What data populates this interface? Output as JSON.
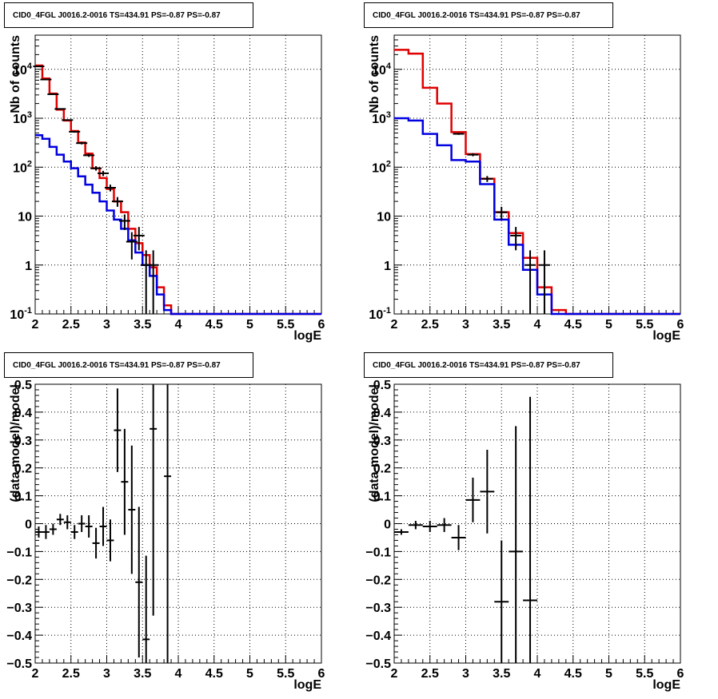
{
  "chart_data": [
    {
      "type": "step-histogram",
      "title": "CID0_4FGL J0016.2-0016 TS=434.91 PS=-0.87 PS=-0.87",
      "xlabel": "logE",
      "ylabel": "Nb of counts",
      "xlim": [
        2,
        6
      ],
      "ylim": [
        0.1,
        50000
      ],
      "log_y": true,
      "grid": true,
      "x_ticks": [
        "2",
        "2.5",
        "3",
        "3.5",
        "4",
        "4.5",
        "5",
        "5.5",
        "6"
      ],
      "y_ticks": [
        "10^-1",
        "1",
        "10",
        "10^2",
        "10^3",
        "10^4"
      ],
      "bin_edges": [
        2.0,
        2.1,
        2.2,
        2.3,
        2.4,
        2.5,
        2.6,
        2.7,
        2.8,
        2.9,
        3.0,
        3.1,
        3.2,
        3.3,
        3.4,
        3.5,
        3.6,
        3.7,
        3.8,
        3.9,
        4.0,
        4.1,
        4.2,
        4.3,
        4.4,
        4.5,
        4.6,
        4.7,
        4.8,
        4.9,
        5.0,
        5.1,
        5.2,
        5.3,
        5.4,
        5.5,
        5.6,
        5.7,
        5.8,
        5.9,
        6.0
      ],
      "series": [
        {
          "color": "#e00000",
          "values": [
            12000,
            6500,
            3200,
            1500,
            900,
            550,
            320,
            190,
            95,
            60,
            36,
            20,
            12,
            5.5,
            2.8,
            1.6,
            0.9,
            0.35,
            0.15,
            0.1,
            0.1,
            0.1,
            0.1,
            0.1,
            0.1,
            0.1,
            0.1,
            0.1,
            0.1,
            0.1,
            0.1,
            0.1,
            0.1,
            0.1,
            0.1,
            0.1,
            0.1,
            0.1,
            0.1,
            0.1
          ]
        },
        {
          "color": "#0000e0",
          "values": [
            450,
            380,
            260,
            180,
            130,
            95,
            65,
            44,
            30,
            20,
            13,
            8.5,
            5.5,
            3.2,
            1.8,
            1.0,
            0.6,
            0.25,
            0.12,
            0.1,
            0.1,
            0.1,
            0.1,
            0.1,
            0.1,
            0.1,
            0.1,
            0.1,
            0.1,
            0.1,
            0.1,
            0.1,
            0.1,
            0.1,
            0.1,
            0.1,
            0.1,
            0.1,
            0.1,
            0.1
          ]
        }
      ],
      "data_points": [
        {
          "x": 2.05,
          "y": 11500,
          "yerr": 110
        },
        {
          "x": 2.15,
          "y": 6200,
          "yerr": 80
        },
        {
          "x": 2.25,
          "y": 3100,
          "yerr": 56
        },
        {
          "x": 2.35,
          "y": 1550,
          "yerr": 40
        },
        {
          "x": 2.45,
          "y": 920,
          "yerr": 30
        },
        {
          "x": 2.55,
          "y": 530,
          "yerr": 23
        },
        {
          "x": 2.65,
          "y": 310,
          "yerr": 18
        },
        {
          "x": 2.75,
          "y": 175,
          "yerr": 13
        },
        {
          "x": 2.85,
          "y": 95,
          "yerr": 10
        },
        {
          "x": 2.95,
          "y": 75,
          "yerr": 9
        },
        {
          "x": 3.05,
          "y": 38,
          "yerr": 6
        },
        {
          "x": 3.15,
          "y": 20,
          "yerr": 4.5
        },
        {
          "x": 3.25,
          "y": 8,
          "yerr": 2.8
        },
        {
          "x": 3.35,
          "y": 3,
          "yerr": 1.7
        },
        {
          "x": 3.45,
          "y": 4,
          "yerr": 2
        },
        {
          "x": 3.55,
          "y": 1,
          "yerr": 1
        },
        {
          "x": 3.65,
          "y": 1,
          "yerr": 1
        }
      ]
    },
    {
      "type": "step-histogram",
      "title": "CID0_4FGL J0016.2-0016 TS=434.91 PS=-0.87 PS=-0.87",
      "xlabel": "logE",
      "ylabel": "Nb of counts",
      "xlim": [
        2,
        6
      ],
      "ylim": [
        0.1,
        50000
      ],
      "log_y": true,
      "grid": true,
      "x_ticks": [
        "2",
        "2.5",
        "3",
        "3.5",
        "4",
        "4.5",
        "5",
        "5.5",
        "6"
      ],
      "y_ticks": [
        "10^-1",
        "1",
        "10",
        "10^2",
        "10^3",
        "10^4"
      ],
      "bin_edges": [
        2.0,
        2.2,
        2.4,
        2.6,
        2.8,
        3.0,
        3.2,
        3.4,
        3.6,
        3.8,
        4.0,
        4.2,
        4.4,
        4.6,
        4.8,
        5.0,
        5.2,
        5.4,
        5.6,
        5.8,
        6.0
      ],
      "series": [
        {
          "color": "#e00000",
          "values": [
            25000,
            21000,
            4200,
            2000,
            520,
            185,
            58,
            12,
            4.5,
            1.4,
            0.35,
            0.12,
            0.1,
            0.1,
            0.1,
            0.1,
            0.1,
            0.1,
            0.1,
            0.1
          ]
        },
        {
          "color": "#0000e0",
          "values": [
            1000,
            900,
            480,
            280,
            140,
            130,
            45,
            8.5,
            2.6,
            0.8,
            0.25,
            0.1,
            0.1,
            0.1,
            0.1,
            0.1,
            0.1,
            0.1,
            0.1,
            0.1
          ]
        }
      ],
      "data_points": [
        {
          "x": 2.9,
          "y": 480,
          "yerr": 22
        },
        {
          "x": 3.1,
          "y": 180,
          "yerr": 13
        },
        {
          "x": 3.3,
          "y": 58,
          "yerr": 8
        },
        {
          "x": 3.5,
          "y": 12,
          "yerr": 3.5
        },
        {
          "x": 3.7,
          "y": 4,
          "yerr": 2
        },
        {
          "x": 3.9,
          "y": 1,
          "yerr": 1
        },
        {
          "x": 4.1,
          "y": 1,
          "yerr": 1
        }
      ]
    },
    {
      "type": "scatter-errorbar",
      "title": "CID0_4FGL J0016.2-0016 TS=434.91 PS=-0.87 PS=-0.87",
      "xlabel": "logE",
      "ylabel": "(data-model)/model",
      "xlim": [
        2,
        6
      ],
      "ylim": [
        -0.5,
        0.5
      ],
      "grid": true,
      "x_ticks": [
        "2",
        "2.5",
        "3",
        "3.5",
        "4",
        "4.5",
        "5",
        "5.5",
        "6"
      ],
      "y_ticks": [
        "−0.5",
        "−0.4",
        "−0.3",
        "−0.2",
        "−0.1",
        "0",
        "0.1",
        "0.2",
        "0.3",
        "0.4",
        "0.5"
      ],
      "points": [
        {
          "x": 2.05,
          "y": -0.03,
          "xerr": 0.05,
          "yerr": 0.02
        },
        {
          "x": 2.15,
          "y": -0.03,
          "xerr": 0.05,
          "yerr": 0.025
        },
        {
          "x": 2.25,
          "y": -0.02,
          "xerr": 0.05,
          "yerr": 0.02
        },
        {
          "x": 2.35,
          "y": 0.015,
          "xerr": 0.05,
          "yerr": 0.02
        },
        {
          "x": 2.45,
          "y": 0.005,
          "xerr": 0.05,
          "yerr": 0.025
        },
        {
          "x": 2.55,
          "y": -0.03,
          "xerr": 0.05,
          "yerr": 0.025
        },
        {
          "x": 2.65,
          "y": 0.0,
          "xerr": 0.05,
          "yerr": 0.03
        },
        {
          "x": 2.75,
          "y": -0.01,
          "xerr": 0.05,
          "yerr": 0.04
        },
        {
          "x": 2.85,
          "y": -0.07,
          "xerr": 0.05,
          "yerr": 0.055
        },
        {
          "x": 2.95,
          "y": -0.01,
          "xerr": 0.05,
          "yerr": 0.07
        },
        {
          "x": 3.05,
          "y": -0.06,
          "xerr": 0.05,
          "yerr": 0.075
        },
        {
          "x": 3.15,
          "y": 0.335,
          "xerr": 0.05,
          "yerr": 0.15
        },
        {
          "x": 3.25,
          "y": 0.15,
          "xerr": 0.05,
          "yerr": 0.19
        },
        {
          "x": 3.35,
          "y": 0.05,
          "xerr": 0.05,
          "yerr": 0.23
        },
        {
          "x": 3.45,
          "y": -0.21,
          "xerr": 0.05,
          "yerr": 0.27
        },
        {
          "x": 3.55,
          "y": -0.415,
          "xerr": 0.05,
          "yerr": 0.3
        },
        {
          "x": 3.65,
          "y": 0.34,
          "xerr": 0.05,
          "yerr": 0.67
        },
        {
          "x": 3.85,
          "y": 0.17,
          "xerr": 0.05,
          "yerr": 1.0
        }
      ]
    },
    {
      "type": "scatter-errorbar",
      "title": "CID0_4FGL J0016.2-0016 TS=434.91 PS=-0.87 PS=-0.87",
      "xlabel": "logE",
      "ylabel": "(data-model)/model",
      "xlim": [
        2,
        6
      ],
      "ylim": [
        -0.5,
        0.5
      ],
      "grid": true,
      "x_ticks": [
        "2",
        "2.5",
        "3",
        "3.5",
        "4",
        "4.5",
        "5",
        "5.5",
        "6"
      ],
      "y_ticks": [
        "−0.5",
        "−0.4",
        "−0.3",
        "−0.2",
        "−0.1",
        "0",
        "0.1",
        "0.2",
        "0.3",
        "0.4",
        "0.5"
      ],
      "points": [
        {
          "x": 2.1,
          "y": -0.03,
          "xerr": 0.1,
          "yerr": 0.01
        },
        {
          "x": 2.3,
          "y": -0.005,
          "xerr": 0.1,
          "yerr": 0.015
        },
        {
          "x": 2.5,
          "y": -0.01,
          "xerr": 0.1,
          "yerr": 0.02
        },
        {
          "x": 2.7,
          "y": -0.005,
          "xerr": 0.1,
          "yerr": 0.025
        },
        {
          "x": 2.9,
          "y": -0.05,
          "xerr": 0.1,
          "yerr": 0.045
        },
        {
          "x": 3.1,
          "y": 0.085,
          "xerr": 0.1,
          "yerr": 0.08
        },
        {
          "x": 3.3,
          "y": 0.115,
          "xerr": 0.1,
          "yerr": 0.15
        },
        {
          "x": 3.5,
          "y": -0.28,
          "xerr": 0.1,
          "yerr": 0.22
        },
        {
          "x": 3.7,
          "y": -0.1,
          "xerr": 0.1,
          "yerr": 0.45
        },
        {
          "x": 3.9,
          "y": -0.275,
          "xerr": 0.1,
          "yerr": 0.73
        }
      ]
    }
  ]
}
